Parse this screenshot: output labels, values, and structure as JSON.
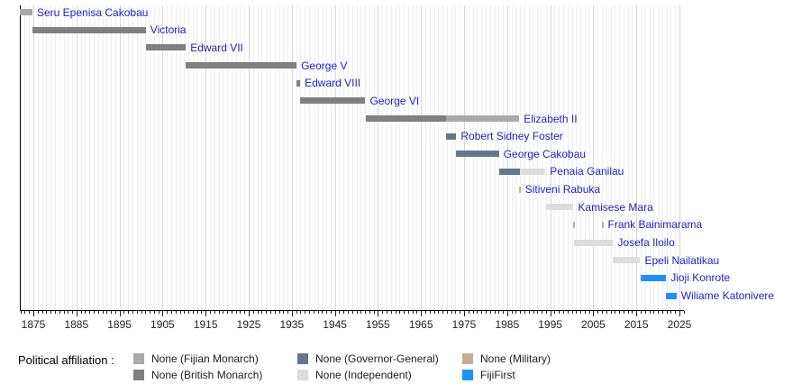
{
  "chart_data": {
    "type": "bar",
    "subtype": "horizontal-timeline",
    "title": "",
    "axis": {
      "orientation": "x",
      "start_year": 1871.8,
      "end_year": 2026,
      "major_tick_interval": 10,
      "minor_tick_interval": 1,
      "tick_labels": [
        "1875",
        "1885",
        "1895",
        "1905",
        "1915",
        "1925",
        "1935",
        "1945",
        "1955",
        "1965",
        "1975",
        "1985",
        "1995",
        "2005",
        "2015",
        "2025"
      ]
    },
    "colors": {
      "fijian_monarch": "#a9a9a9",
      "british_monarch": "#808080",
      "governor_general": "#64778d",
      "independent": "#dcdcdc",
      "military": "#c3b091",
      "fijifirst": "#1e90ff"
    },
    "people": [
      {
        "name": "Seru Epenisa Cakobau",
        "segments": [
          {
            "affiliation": "fijian_monarch",
            "start": 1871.8,
            "end": 1874.8
          }
        ]
      },
      {
        "name": "Victoria",
        "segments": [
          {
            "affiliation": "british_monarch",
            "start": 1874.8,
            "end": 1901.1
          }
        ]
      },
      {
        "name": "Edward VII",
        "segments": [
          {
            "affiliation": "british_monarch",
            "start": 1901.1,
            "end": 1910.4
          }
        ]
      },
      {
        "name": "George V",
        "segments": [
          {
            "affiliation": "british_monarch",
            "start": 1910.4,
            "end": 1936.1
          }
        ]
      },
      {
        "name": "Edward VIII",
        "segments": [
          {
            "affiliation": "british_monarch",
            "start": 1936.1,
            "end": 1936.95
          }
        ]
      },
      {
        "name": "George VI",
        "segments": [
          {
            "affiliation": "british_monarch",
            "start": 1936.95,
            "end": 1952.1
          }
        ]
      },
      {
        "name": "Elizabeth II",
        "segments": [
          {
            "affiliation": "british_monarch",
            "start": 1952.1,
            "end": 1970.8
          },
          {
            "affiliation": "fijian_monarch",
            "start": 1970.8,
            "end": 1987.8
          }
        ]
      },
      {
        "name": "Robert Sidney Foster",
        "segments": [
          {
            "affiliation": "governor_general",
            "start": 1970.8,
            "end": 1973.2
          }
        ]
      },
      {
        "name": "George Cakobau",
        "segments": [
          {
            "affiliation": "governor_general",
            "start": 1973.2,
            "end": 1983.1
          }
        ]
      },
      {
        "name": "Penaia Ganilau",
        "segments": [
          {
            "affiliation": "governor_general",
            "start": 1983.1,
            "end": 1987.9
          },
          {
            "affiliation": "independent",
            "start": 1987.9,
            "end": 1993.9
          }
        ]
      },
      {
        "name": "Sitiveni Rabuka",
        "segments": [
          {
            "affiliation": "military",
            "start": 1987.7,
            "end": 1987.95
          }
        ]
      },
      {
        "name": "Kamisese Mara",
        "segments": [
          {
            "affiliation": "independent",
            "start": 1994.0,
            "end": 2000.4
          }
        ]
      },
      {
        "name": "Frank Bainimarama",
        "segments": [
          {
            "affiliation": "military",
            "start": 2000.4,
            "end": 2000.6
          },
          {
            "affiliation": "military",
            "start": 2006.9,
            "end": 2007.1
          }
        ]
      },
      {
        "name": "Josefa Iloilo",
        "segments": [
          {
            "affiliation": "independent",
            "start": 2000.6,
            "end": 2009.6
          }
        ]
      },
      {
        "name": "Epeli Nailatikau",
        "segments": [
          {
            "affiliation": "independent",
            "start": 2009.6,
            "end": 2015.9
          }
        ]
      },
      {
        "name": "Jioji Konrote",
        "segments": [
          {
            "affiliation": "fijifirst",
            "start": 2015.9,
            "end": 2021.9
          }
        ]
      },
      {
        "name": "Wiliame Katonivere",
        "segments": [
          {
            "affiliation": "fijifirst",
            "start": 2021.9,
            "end": 2024.3
          }
        ]
      }
    ],
    "legend": {
      "title": "Political affiliation :",
      "position": "bottom",
      "columns": [
        [
          {
            "label": "None (Fijian Monarch)",
            "key": "fijian_monarch"
          },
          {
            "label": "None (British Monarch)",
            "key": "british_monarch"
          }
        ],
        [
          {
            "label": "None (Governor-General)",
            "key": "governor_general"
          },
          {
            "label": "None (Independent)",
            "key": "independent"
          }
        ],
        [
          {
            "label": "None (Military)",
            "key": "military"
          },
          {
            "label": "FijiFirst",
            "key": "fijifirst"
          }
        ]
      ]
    },
    "grid": "vertical, yearly minor lines and decade major lines"
  }
}
